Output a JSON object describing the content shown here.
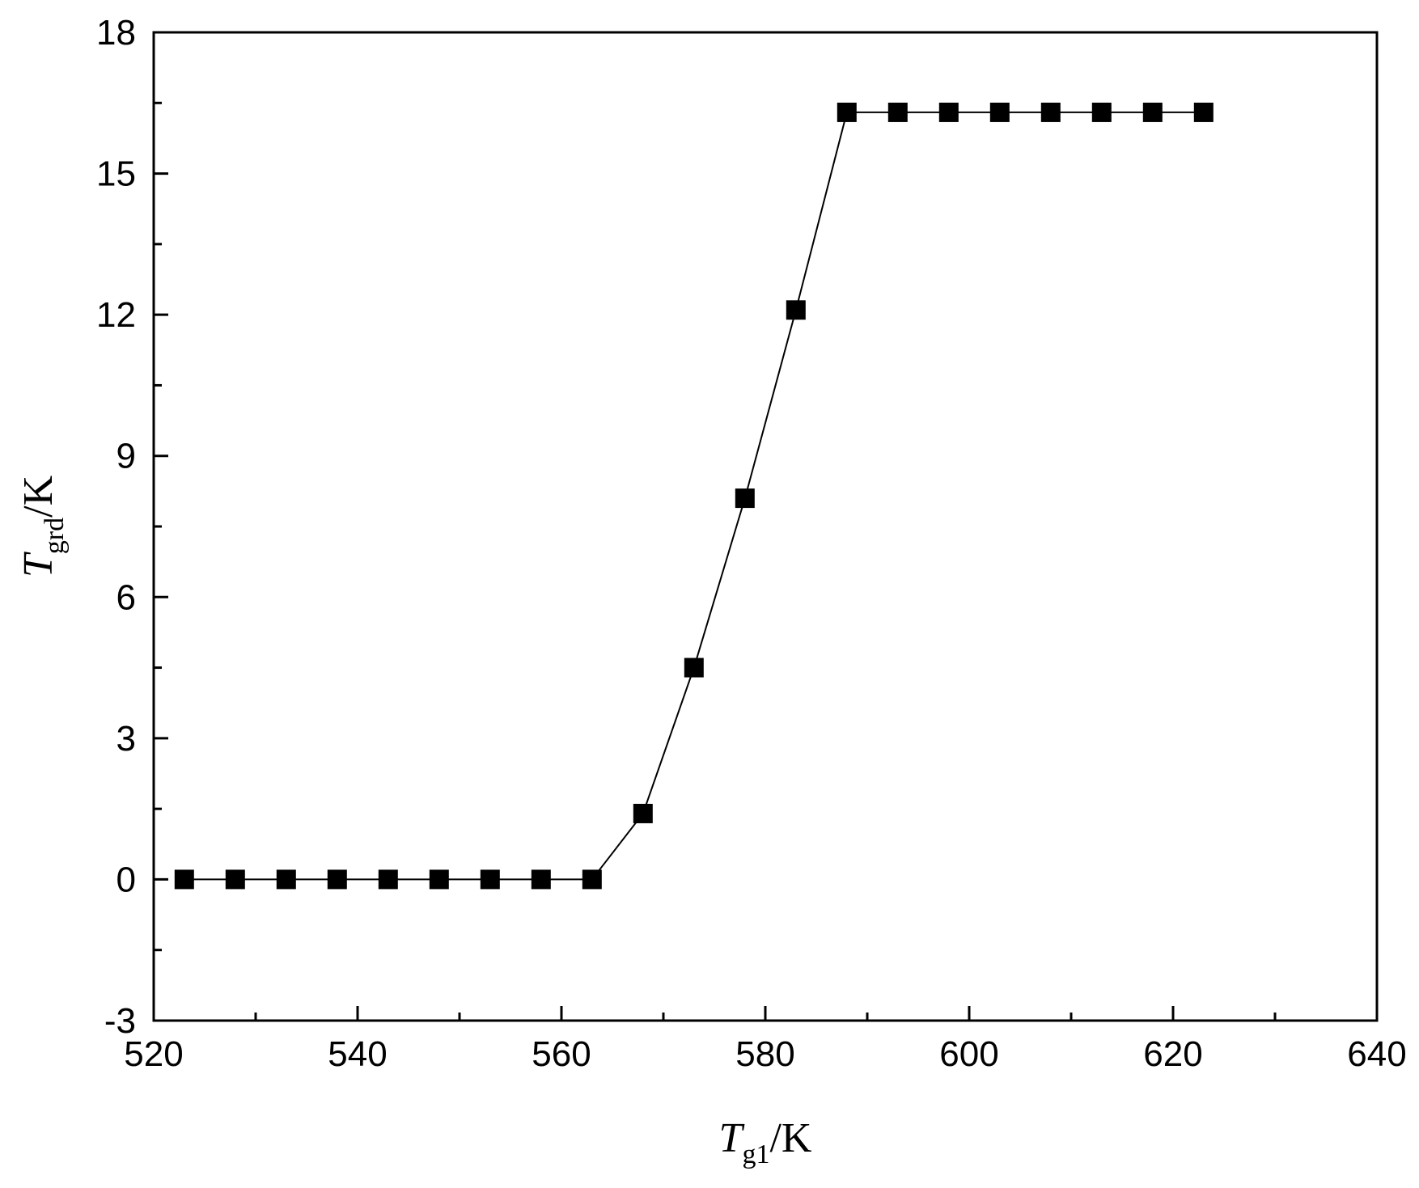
{
  "chart_data": {
    "type": "line",
    "xlabel": {
      "main": "T",
      "sub": "g1",
      "unit": "/K"
    },
    "ylabel": {
      "main": "T",
      "sub": "grd",
      "unit": "/K"
    },
    "xlim": [
      520,
      640
    ],
    "ylim": [
      -3,
      18
    ],
    "x_ticks": [
      "520",
      "540",
      "560",
      "580",
      "600",
      "620",
      "640"
    ],
    "y_ticks": [
      "-3",
      "0",
      "3",
      "6",
      "9",
      "12",
      "15",
      "18"
    ],
    "grid": false,
    "legend": "none",
    "series": [
      {
        "marker": "square",
        "color": "#000000",
        "x": [
          523,
          528,
          533,
          538,
          543,
          548,
          553,
          558,
          563,
          568,
          573,
          578,
          583,
          588,
          593,
          598,
          603,
          608,
          613,
          618,
          623
        ],
        "y": [
          0,
          0,
          0,
          0,
          0,
          0,
          0,
          0,
          0,
          1.4,
          4.5,
          8.1,
          12.1,
          16.3,
          16.3,
          16.3,
          16.3,
          16.3,
          16.3,
          16.3,
          16.3
        ]
      }
    ]
  }
}
